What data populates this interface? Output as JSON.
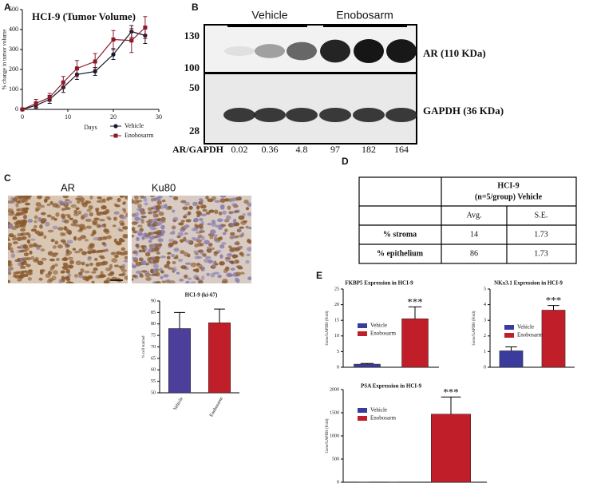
{
  "panel_labels": [
    "A",
    "B",
    "C",
    "D",
    "E"
  ],
  "chart_data": [
    {
      "type": "line",
      "title": "HCI-9 (Tumor Volume)",
      "x_label": "Days",
      "y_label": "% change in tumor volume",
      "x": [
        0,
        3,
        6,
        9,
        12,
        16,
        20,
        24,
        27
      ],
      "series": [
        {
          "name": "Vehicle",
          "color": "#1a1a2e",
          "marker": "circle",
          "values": [
            0,
            20,
            50,
            110,
            175,
            190,
            275,
            390,
            370
          ],
          "errors": [
            5,
            15,
            20,
            25,
            25,
            20,
            25,
            30,
            40
          ]
        },
        {
          "name": "Enobosarm",
          "color": "#8b1a2b",
          "marker": "square",
          "values": [
            0,
            30,
            60,
            135,
            205,
            240,
            350,
            345,
            410
          ],
          "errors": [
            5,
            20,
            20,
            30,
            40,
            40,
            45,
            60,
            55
          ]
        }
      ],
      "xlim": [
        0,
        30
      ],
      "xticks": [
        0,
        10,
        20,
        30
      ],
      "ylim": [
        0,
        500
      ],
      "yticks": [
        0,
        100,
        200,
        300,
        400,
        500
      ]
    },
    {
      "type": "bar",
      "title": "HCI-9  (ki-67)",
      "y_label": "% cell stained",
      "categories": [
        "Vehicle",
        "Enobosarm"
      ],
      "values": [
        78,
        80.5
      ],
      "errors": [
        7,
        6
      ],
      "colors": [
        "#4b3f9b",
        "#c01f2a"
      ],
      "ylim": [
        50,
        90
      ],
      "yticks": [
        50,
        55,
        60,
        65,
        70,
        75,
        80,
        85,
        90
      ]
    },
    {
      "type": "bar",
      "title": "FKBP5 Expression in HCI-9",
      "y_label": "Gene/GAPDH (Fold)",
      "annotation": "***",
      "series": [
        {
          "name": "Vehicle",
          "color": "#3b3b9e",
          "values": [
            1
          ],
          "errors": [
            0.2
          ]
        },
        {
          "name": "Enobosarm",
          "color": "#c01f2a",
          "values": [
            15.5
          ],
          "errors": [
            3.8
          ]
        }
      ],
      "ylim": [
        0,
        25
      ],
      "yticks": [
        0,
        5,
        10,
        15,
        20,
        25
      ]
    },
    {
      "type": "bar",
      "title": "NKx3.1 Expression in HCI-9",
      "y_label": "Gene/GAPDH (Fold)",
      "annotation": "***",
      "series": [
        {
          "name": "Vehicle",
          "color": "#3b3b9e",
          "values": [
            1.05
          ],
          "errors": [
            0.25
          ]
        },
        {
          "name": "Enobosarm",
          "color": "#c01f2a",
          "values": [
            3.65
          ],
          "errors": [
            0.3
          ]
        }
      ],
      "ylim": [
        0,
        5
      ],
      "yticks": [
        0,
        1,
        2,
        3,
        4,
        5
      ]
    },
    {
      "type": "bar",
      "title": "PSA Expression in HCI-9",
      "y_label": "Gene/GAPDH (Fold)",
      "annotation": "***",
      "series": [
        {
          "name": "Vehicle",
          "color": "#3b3b9e",
          "values": [
            1
          ],
          "errors": [
            0
          ]
        },
        {
          "name": "Enobosarm",
          "color": "#c01f2a",
          "values": [
            1470
          ],
          "errors": [
            370
          ]
        }
      ],
      "ylim": [
        0,
        2000
      ],
      "yticks": [
        0,
        500,
        1000,
        1500,
        2000
      ]
    }
  ],
  "blot": {
    "groups": [
      "Vehicle",
      "Enobosarm"
    ],
    "markers": [
      "130",
      "100",
      "50",
      "28"
    ],
    "bands": [
      "AR (110 KDa)",
      "GAPDH (36 KDa)"
    ],
    "ratio_label": "AR/GAPDH",
    "ratios": [
      0.02,
      0.36,
      4.8,
      97,
      182,
      164
    ]
  },
  "ihc": {
    "labels": [
      "AR",
      "Ku80"
    ]
  },
  "table": {
    "header": [
      "HCI-9",
      "(n=5/group) Vehicle"
    ],
    "columns": [
      "Avg.",
      "S.E."
    ],
    "rows": [
      [
        "% stroma",
        14,
        1.73
      ],
      [
        "% epithelium",
        86,
        1.73
      ]
    ]
  }
}
